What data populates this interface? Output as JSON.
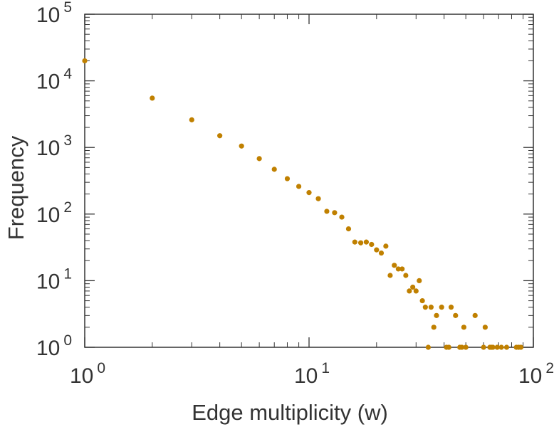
{
  "chart_data": {
    "type": "scatter",
    "title": "",
    "xlabel": "Edge multiplicity (w)",
    "ylabel": "Frequency",
    "xscale": "log",
    "yscale": "log",
    "xlim": [
      1,
      100
    ],
    "ylim": [
      1,
      100000
    ],
    "grid": false,
    "legend": "none",
    "x_ticks": [
      {
        "base": "10",
        "exp": "0"
      },
      {
        "base": "10",
        "exp": "1"
      },
      {
        "base": "10",
        "exp": "2"
      }
    ],
    "y_ticks": [
      {
        "base": "10",
        "exp": "0"
      },
      {
        "base": "10",
        "exp": "1"
      },
      {
        "base": "10",
        "exp": "2"
      },
      {
        "base": "10",
        "exp": "3"
      },
      {
        "base": "10",
        "exp": "4"
      },
      {
        "base": "10",
        "exp": "5"
      }
    ],
    "marker_color": "#c08000",
    "series": [
      {
        "x": [
          1,
          2,
          3,
          4,
          5,
          6,
          7,
          8,
          9,
          10,
          11,
          12,
          13,
          14,
          15,
          16,
          17,
          18,
          19,
          20,
          21,
          22,
          23,
          24,
          25,
          26,
          27,
          28,
          29,
          30,
          31,
          32,
          33,
          34,
          35,
          36,
          37,
          39,
          41,
          42,
          43,
          45,
          47,
          48,
          49,
          50,
          55,
          60,
          61,
          64,
          65,
          66,
          69,
          72,
          76,
          84,
          86,
          88
        ],
        "y": [
          20000,
          5500,
          2600,
          1500,
          1050,
          680,
          470,
          340,
          260,
          210,
          170,
          110,
          105,
          90,
          60,
          38,
          37,
          38,
          35,
          29,
          26,
          33,
          12,
          17,
          15,
          15,
          12,
          7,
          8,
          7,
          10,
          5,
          4,
          1,
          4,
          2,
          3,
          4,
          1,
          1,
          4,
          3,
          1,
          1,
          2,
          1,
          3,
          1,
          2,
          1,
          1,
          1,
          1,
          1,
          1,
          1,
          1,
          1
        ]
      }
    ]
  }
}
